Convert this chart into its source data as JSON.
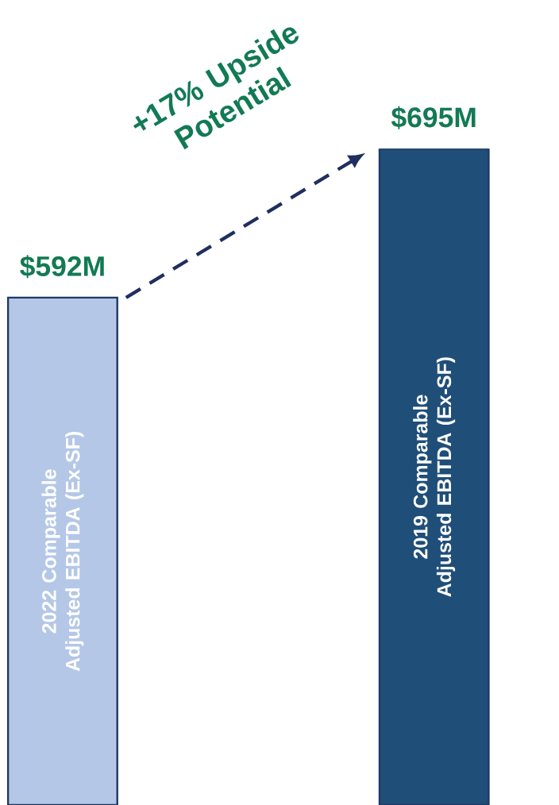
{
  "chart_data": {
    "type": "bar",
    "categories": [
      "2022 Comparable Adjusted EBITDA (Ex-SF)",
      "2019 Comparable Adjusted EBITDA (Ex-SF)"
    ],
    "values": [
      592,
      695
    ],
    "value_labels": [
      "$592M",
      "$695M"
    ],
    "ylim": [
      241,
      695
    ],
    "colors": [
      "#b4c7e7",
      "#1f4e79"
    ],
    "annotations": [
      "+17% Upside Potential"
    ]
  }
}
